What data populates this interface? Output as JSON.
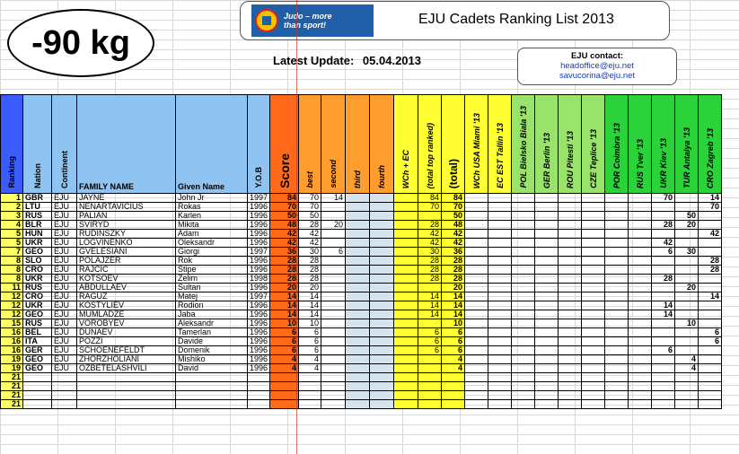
{
  "weight": "-90 kg",
  "title": "EJU Cadets Ranking List 2013",
  "logo": {
    "line1": "Judo – more",
    "line2": "than sport!"
  },
  "latest_label": "Latest Update:",
  "latest_date": "05.04.2013",
  "contact": {
    "title": "EJU contact:",
    "email1": "headoffice@eju.net",
    "email2": "savucorina@eju.net"
  },
  "headers": {
    "ranking": "Ranking",
    "nation": "Nation",
    "continent": "Continent",
    "family": "FAMILY NAME",
    "given": "Given Name",
    "yob": "Y.O.B",
    "score": "Score",
    "best": "best",
    "second": "second",
    "third": "third",
    "fourth": "fourth",
    "wch": "WCh + EC",
    "total_top": "(total top ranked)",
    "total": "(total)",
    "events": [
      "WCh USA Miami '13",
      "EC EST Tallin '13",
      "POL Bielsko Biala '13",
      "GER Berlin '13",
      "ROU Pitesti '13",
      "CZE Teplice '13",
      "POR Coimbra '13",
      "RUS Tver '13",
      "UKR Kiev '13",
      "TUR Antalya '13",
      "CRO Zagreb '13"
    ]
  },
  "rows": [
    {
      "rank": "1",
      "nat": "GBR",
      "cont": "EJU",
      "family": "JAYNE",
      "given": "John Jr",
      "yob": "1997",
      "score": "84",
      "best": "70",
      "second": "14",
      "third": "",
      "fourth": "",
      "wch": "",
      "ttop": "84",
      "total": "84",
      "ev": [
        "",
        "",
        "",
        "",
        "",
        "",
        "",
        "",
        "70",
        "",
        "14"
      ]
    },
    {
      "rank": "2",
      "nat": "LTU",
      "cont": "EJU",
      "family": "NENARTAVICIUS",
      "given": "Rokas",
      "yob": "1996",
      "score": "70",
      "best": "70",
      "second": "",
      "third": "",
      "fourth": "",
      "wch": "",
      "ttop": "70",
      "total": "70",
      "ev": [
        "",
        "",
        "",
        "",
        "",
        "",
        "",
        "",
        "",
        "",
        "70"
      ]
    },
    {
      "rank": "3",
      "nat": "RUS",
      "cont": "EJU",
      "family": "PALIAN",
      "given": "Karlen",
      "yob": "1996",
      "score": "50",
      "best": "50",
      "second": "",
      "third": "",
      "fourth": "",
      "wch": "",
      "ttop": "",
      "total": "50",
      "ev": [
        "",
        "",
        "",
        "",
        "",
        "",
        "",
        "",
        "",
        "50",
        ""
      ]
    },
    {
      "rank": "4",
      "nat": "BLR",
      "cont": "EJU",
      "family": "SVIRYD",
      "given": "Mikita",
      "yob": "1996",
      "score": "48",
      "best": "28",
      "second": "20",
      "third": "",
      "fourth": "",
      "wch": "",
      "ttop": "28",
      "total": "48",
      "ev": [
        "",
        "",
        "",
        "",
        "",
        "",
        "",
        "",
        "28",
        "20",
        ""
      ]
    },
    {
      "rank": "5",
      "nat": "HUN",
      "cont": "EJU",
      "family": "RUDINSZKY",
      "given": "Adam",
      "yob": "1996",
      "score": "42",
      "best": "42",
      "second": "",
      "third": "",
      "fourth": "",
      "wch": "",
      "ttop": "42",
      "total": "42",
      "ev": [
        "",
        "",
        "",
        "",
        "",
        "",
        "",
        "",
        "",
        "",
        "42"
      ]
    },
    {
      "rank": "5",
      "nat": "UKR",
      "cont": "EJU",
      "family": "LOGVINENKO",
      "given": "Oleksandr",
      "yob": "1996",
      "score": "42",
      "best": "42",
      "second": "",
      "third": "",
      "fourth": "",
      "wch": "",
      "ttop": "42",
      "total": "42",
      "ev": [
        "",
        "",
        "",
        "",
        "",
        "",
        "",
        "",
        "42",
        "",
        ""
      ]
    },
    {
      "rank": "7",
      "nat": "GEO",
      "cont": "EJU",
      "family": "GVELESIANI",
      "given": "Giorgi",
      "yob": "1997",
      "score": "36",
      "best": "30",
      "second": "6",
      "third": "",
      "fourth": "",
      "wch": "",
      "ttop": "30",
      "total": "36",
      "ev": [
        "",
        "",
        "",
        "",
        "",
        "",
        "",
        "",
        "6",
        "30",
        ""
      ]
    },
    {
      "rank": "8",
      "nat": "SLO",
      "cont": "EJU",
      "family": "POLAJZER",
      "given": "Rok",
      "yob": "1996",
      "score": "28",
      "best": "28",
      "second": "",
      "third": "",
      "fourth": "",
      "wch": "",
      "ttop": "28",
      "total": "28",
      "ev": [
        "",
        "",
        "",
        "",
        "",
        "",
        "",
        "",
        "",
        "",
        "28"
      ]
    },
    {
      "rank": "8",
      "nat": "CRO",
      "cont": "EJU",
      "family": "RAJCIC",
      "given": "Stipe",
      "yob": "1996",
      "score": "28",
      "best": "28",
      "second": "",
      "third": "",
      "fourth": "",
      "wch": "",
      "ttop": "28",
      "total": "28",
      "ev": [
        "",
        "",
        "",
        "",
        "",
        "",
        "",
        "",
        "",
        "",
        "28"
      ]
    },
    {
      "rank": "8",
      "nat": "UKR",
      "cont": "EJU",
      "family": "KOTSOEV",
      "given": "Zelim",
      "yob": "1998",
      "score": "28",
      "best": "28",
      "second": "",
      "third": "",
      "fourth": "",
      "wch": "",
      "ttop": "28",
      "total": "28",
      "ev": [
        "",
        "",
        "",
        "",
        "",
        "",
        "",
        "",
        "28",
        "",
        ""
      ]
    },
    {
      "rank": "11",
      "nat": "RUS",
      "cont": "EJU",
      "family": "ABDULLAEV",
      "given": "Sultan",
      "yob": "1996",
      "score": "20",
      "best": "20",
      "second": "",
      "third": "",
      "fourth": "",
      "wch": "",
      "ttop": "",
      "total": "20",
      "ev": [
        "",
        "",
        "",
        "",
        "",
        "",
        "",
        "",
        "",
        "20",
        ""
      ]
    },
    {
      "rank": "12",
      "nat": "CRO",
      "cont": "EJU",
      "family": "RAGUZ",
      "given": "Matej",
      "yob": "1997",
      "score": "14",
      "best": "14",
      "second": "",
      "third": "",
      "fourth": "",
      "wch": "",
      "ttop": "14",
      "total": "14",
      "ev": [
        "",
        "",
        "",
        "",
        "",
        "",
        "",
        "",
        "",
        "",
        "14"
      ]
    },
    {
      "rank": "12",
      "nat": "UKR",
      "cont": "EJU",
      "family": "KOSTYLIEV",
      "given": "Rodion",
      "yob": "1996",
      "score": "14",
      "best": "14",
      "second": "",
      "third": "",
      "fourth": "",
      "wch": "",
      "ttop": "14",
      "total": "14",
      "ev": [
        "",
        "",
        "",
        "",
        "",
        "",
        "",
        "",
        "14",
        "",
        ""
      ]
    },
    {
      "rank": "12",
      "nat": "GEO",
      "cont": "EJU",
      "family": "MUMLADZE",
      "given": "Jaba",
      "yob": "1996",
      "score": "14",
      "best": "14",
      "second": "",
      "third": "",
      "fourth": "",
      "wch": "",
      "ttop": "14",
      "total": "14",
      "ev": [
        "",
        "",
        "",
        "",
        "",
        "",
        "",
        "",
        "14",
        "",
        ""
      ]
    },
    {
      "rank": "15",
      "nat": "RUS",
      "cont": "EJU",
      "family": "VOROBYEV",
      "given": "Aleksandr",
      "yob": "1996",
      "score": "10",
      "best": "10",
      "second": "",
      "third": "",
      "fourth": "",
      "wch": "",
      "ttop": "",
      "total": "10",
      "ev": [
        "",
        "",
        "",
        "",
        "",
        "",
        "",
        "",
        "",
        "10",
        ""
      ]
    },
    {
      "rank": "16",
      "nat": "BEL",
      "cont": "EJU",
      "family": "DUNAEV",
      "given": "Tamerlan",
      "yob": "1996",
      "score": "6",
      "best": "6",
      "second": "",
      "third": "",
      "fourth": "",
      "wch": "",
      "ttop": "6",
      "total": "6",
      "ev": [
        "",
        "",
        "",
        "",
        "",
        "",
        "",
        "",
        "",
        "",
        "6"
      ]
    },
    {
      "rank": "16",
      "nat": "ITA",
      "cont": "EJU",
      "family": "POZZI",
      "given": "Davide",
      "yob": "1996",
      "score": "6",
      "best": "6",
      "second": "",
      "third": "",
      "fourth": "",
      "wch": "",
      "ttop": "6",
      "total": "6",
      "ev": [
        "",
        "",
        "",
        "",
        "",
        "",
        "",
        "",
        "",
        "",
        "6"
      ]
    },
    {
      "rank": "16",
      "nat": "GER",
      "cont": "EJU",
      "family": "SCHOENEFELDT",
      "given": "Domenik",
      "yob": "1996",
      "score": "6",
      "best": "6",
      "second": "",
      "third": "",
      "fourth": "",
      "wch": "",
      "ttop": "6",
      "total": "6",
      "ev": [
        "",
        "",
        "",
        "",
        "",
        "",
        "",
        "",
        "6",
        "",
        ""
      ]
    },
    {
      "rank": "19",
      "nat": "GEO",
      "cont": "EJU",
      "family": "ZHORZHOLIANI",
      "given": "Mishiko",
      "yob": "1996",
      "score": "4",
      "best": "4",
      "second": "",
      "third": "",
      "fourth": "",
      "wch": "",
      "ttop": "",
      "total": "4",
      "ev": [
        "",
        "",
        "",
        "",
        "",
        "",
        "",
        "",
        "",
        "4",
        ""
      ]
    },
    {
      "rank": "19",
      "nat": "GEO",
      "cont": "EJU",
      "family": "OZBETELASHVILI",
      "given": "David",
      "yob": "1996",
      "score": "4",
      "best": "4",
      "second": "",
      "third": "",
      "fourth": "",
      "wch": "",
      "ttop": "",
      "total": "4",
      "ev": [
        "",
        "",
        "",
        "",
        "",
        "",
        "",
        "",
        "",
        "4",
        ""
      ]
    },
    {
      "rank": "21",
      "nat": "",
      "cont": "",
      "family": "",
      "given": "",
      "yob": "",
      "score": "",
      "best": "",
      "second": "",
      "third": "",
      "fourth": "",
      "wch": "",
      "ttop": "",
      "total": "",
      "ev": [
        "",
        "",
        "",
        "",
        "",
        "",
        "",
        "",
        "",
        "",
        ""
      ]
    },
    {
      "rank": "21",
      "nat": "",
      "cont": "",
      "family": "",
      "given": "",
      "yob": "",
      "score": "",
      "best": "",
      "second": "",
      "third": "",
      "fourth": "",
      "wch": "",
      "ttop": "",
      "total": "",
      "ev": [
        "",
        "",
        "",
        "",
        "",
        "",
        "",
        "",
        "",
        "",
        ""
      ]
    },
    {
      "rank": "21",
      "nat": "",
      "cont": "",
      "family": "",
      "given": "",
      "yob": "",
      "score": "",
      "best": "",
      "second": "",
      "third": "",
      "fourth": "",
      "wch": "",
      "ttop": "",
      "total": "",
      "ev": [
        "",
        "",
        "",
        "",
        "",
        "",
        "",
        "",
        "",
        "",
        ""
      ]
    },
    {
      "rank": "21",
      "nat": "",
      "cont": "",
      "family": "",
      "given": "",
      "yob": "",
      "score": "",
      "best": "",
      "second": "",
      "third": "",
      "fourth": "",
      "wch": "",
      "ttop": "",
      "total": "",
      "ev": [
        "",
        "",
        "",
        "",
        "",
        "",
        "",
        "",
        "",
        "",
        ""
      ]
    }
  ]
}
